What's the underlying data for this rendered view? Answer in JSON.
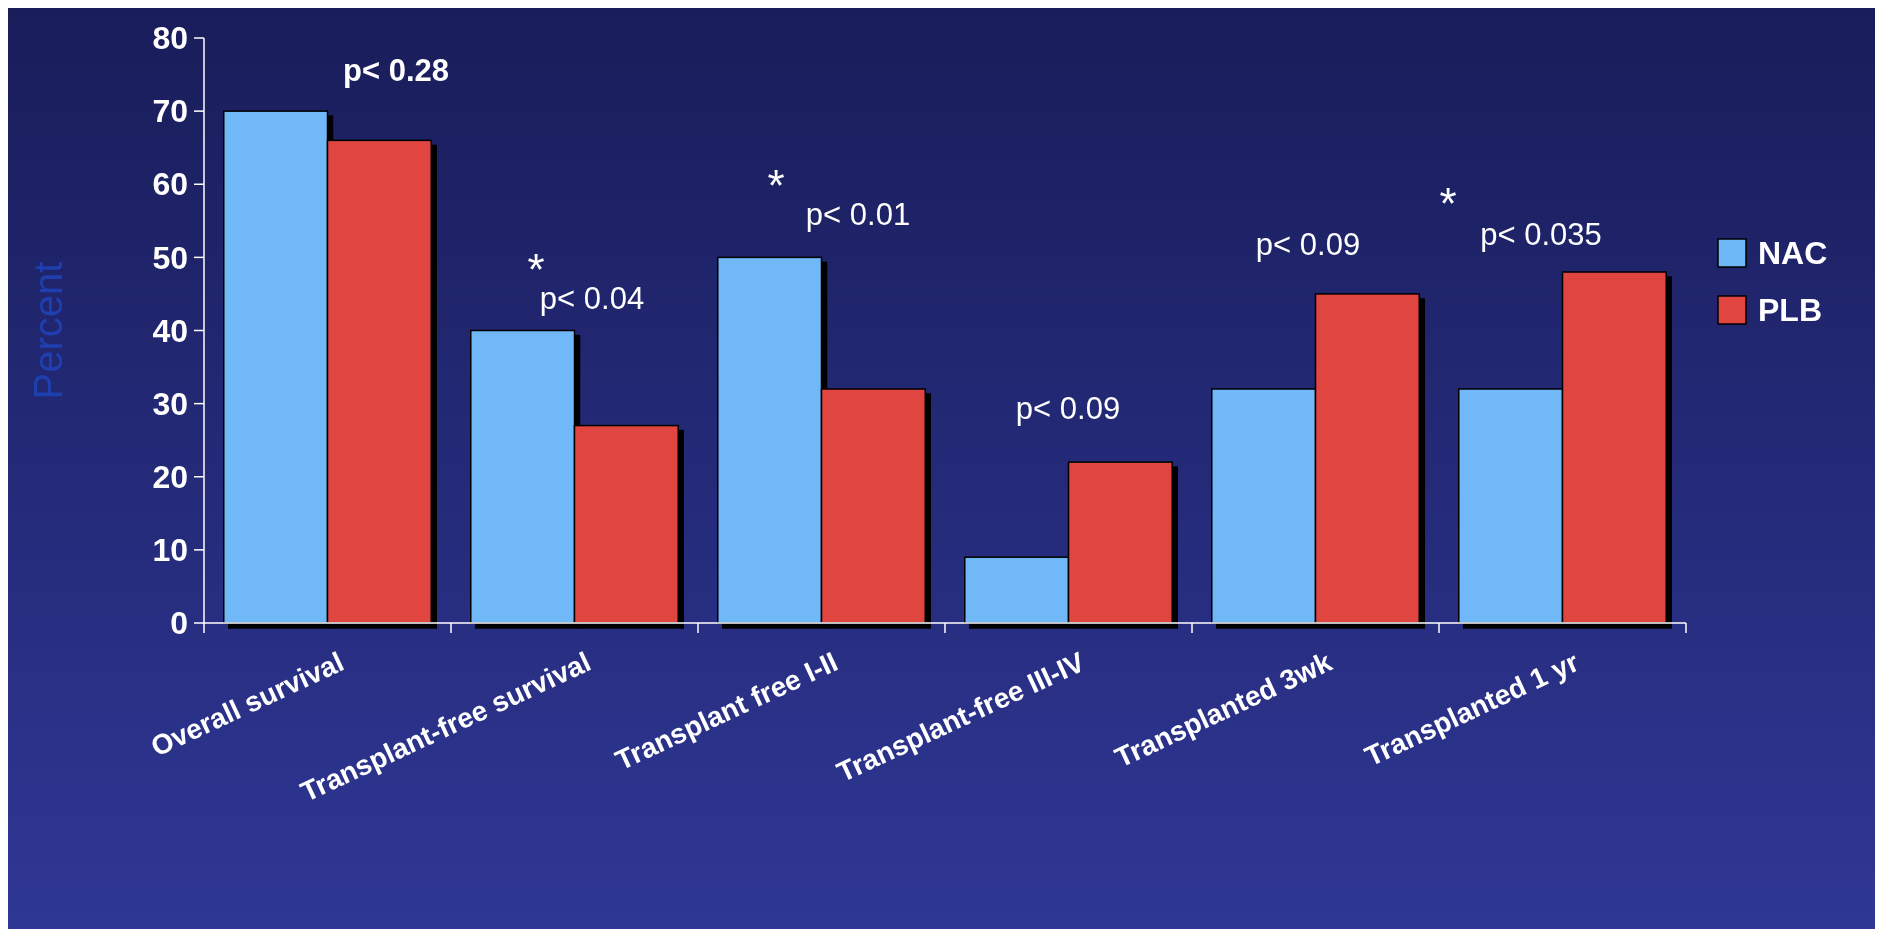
{
  "chart_data": {
    "type": "bar",
    "ylabel": "Percent",
    "categories": [
      "Overall survival",
      "Transplant-free survival",
      "Transplant free I-II",
      "Transplant-free III-IV",
      "Transplanted 3wk",
      "Transplanted 1 yr"
    ],
    "series": [
      {
        "name": "NAC",
        "color": "#6fb8f8",
        "values": [
          70,
          40,
          50,
          9,
          32,
          32
        ]
      },
      {
        "name": "PLB",
        "color": "#e04540",
        "values": [
          66,
          27,
          32,
          22,
          45,
          48
        ]
      }
    ],
    "ylim": [
      0,
      80
    ],
    "yticks": [
      0,
      10,
      20,
      30,
      40,
      50,
      60,
      70,
      80
    ],
    "grid": false,
    "legend": "right",
    "annotations": [
      "p< 0.28",
      "*",
      "p< 0.04",
      "*",
      "p< 0.01",
      "p< 0.09",
      "p< 0.09",
      "*",
      "p< 0.035"
    ]
  }
}
